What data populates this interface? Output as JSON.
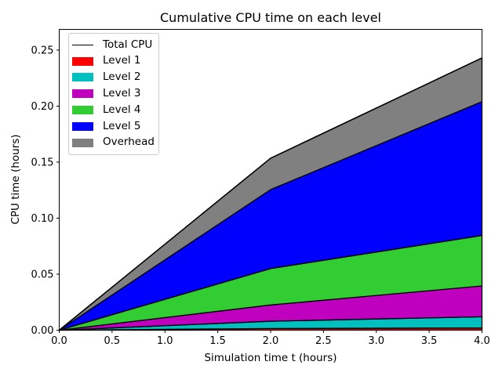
{
  "chart_data": {
    "type": "area",
    "stacked": true,
    "title": "Cumulative CPU time on each level",
    "xlabel": "Simulation time t (hours)",
    "ylabel": "CPU time (hours)",
    "xlim": [
      0,
      4
    ],
    "ylim": [
      0,
      0.2685
    ],
    "grid": false,
    "background": "#ffffff",
    "edge_color": "#000000",
    "x": [
      0,
      2,
      4
    ],
    "series": [
      {
        "name": "Level 1",
        "color": "#ff0000",
        "values": [
          0,
          0.0015,
          0.002
        ]
      },
      {
        "name": "Level 2",
        "color": "#00bfbf",
        "values": [
          0,
          0.0065,
          0.01
        ]
      },
      {
        "name": "Level 3",
        "color": "#bf00bf",
        "values": [
          0,
          0.0145,
          0.0275
        ]
      },
      {
        "name": "Level 4",
        "color": "#32cd32",
        "values": [
          0,
          0.0325,
          0.045
        ]
      },
      {
        "name": "Level 5",
        "color": "#0000ff",
        "values": [
          0,
          0.0705,
          0.1195
        ]
      },
      {
        "name": "Overhead",
        "color": "#808080",
        "values": [
          0,
          0.028,
          0.039
        ]
      }
    ],
    "total_line": {
      "name": "Total CPU",
      "color": "#000000",
      "values": [
        0,
        0.1535,
        0.243
      ]
    },
    "xticks": {
      "values": [
        0,
        0.5,
        1,
        1.5,
        2,
        2.5,
        3,
        3.5,
        4
      ],
      "labels": [
        "0.0",
        "0.5",
        "1.0",
        "1.5",
        "2.0",
        "2.5",
        "3.0",
        "3.5",
        "4.0"
      ]
    },
    "yticks": {
      "values": [
        0,
        0.05,
        0.1,
        0.15,
        0.2,
        0.25
      ],
      "labels": [
        "0.00",
        "0.05",
        "0.10",
        "0.15",
        "0.20",
        "0.25"
      ]
    },
    "legend": {
      "position": "upper-left",
      "entries": [
        {
          "label": "Total CPU",
          "type": "line",
          "color": "#000000"
        },
        {
          "label": "Level 1",
          "type": "patch",
          "color": "#ff0000"
        },
        {
          "label": "Level 2",
          "type": "patch",
          "color": "#00bfbf"
        },
        {
          "label": "Level 3",
          "type": "patch",
          "color": "#bf00bf"
        },
        {
          "label": "Level 4",
          "type": "patch",
          "color": "#32cd32"
        },
        {
          "label": "Level 5",
          "type": "patch",
          "color": "#0000ff"
        },
        {
          "label": "Overhead",
          "type": "patch",
          "color": "#808080"
        }
      ]
    }
  }
}
